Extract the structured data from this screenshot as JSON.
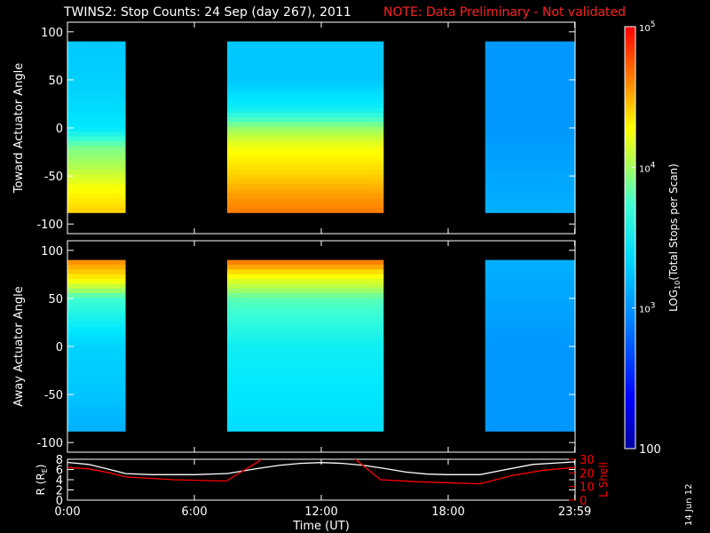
{
  "title": "TWINS2: Stop Counts: 24 Sep (day 267), 2011",
  "note": "NOTE: Data Preliminary - Not validated",
  "side_date": "14 Jun 12",
  "colors": {
    "background": "#000000",
    "axes": "#ffffff",
    "note": "#ff2020",
    "r_line": "#ffffff",
    "l_line": "#ff0000"
  },
  "chart_data": [
    {
      "type": "heatmap",
      "ylabel": "Toward Actuator Angle",
      "xlim": [
        0,
        24
      ],
      "ylim": [
        -110,
        110
      ],
      "x_ticks": [
        {
          "value": 0,
          "label": "0:00"
        },
        {
          "value": 6,
          "label": "6:00"
        },
        {
          "value": 12,
          "label": "12:00"
        },
        {
          "value": 18,
          "label": "18:00"
        },
        {
          "value": 23.983,
          "label": "23:59"
        }
      ],
      "y_ticks": [
        {
          "value": 100,
          "label": "100"
        },
        {
          "value": 50,
          "label": "50"
        },
        {
          "value": 0,
          "label": "0"
        },
        {
          "value": -50,
          "label": "-50"
        },
        {
          "value": -100,
          "label": "-100"
        }
      ],
      "angle_range": [
        -88,
        90
      ],
      "data_intervals": [
        {
          "start": 0.0,
          "end": 2.75,
          "levels": [
            {
              "y": 90,
              "v": 3.05
            },
            {
              "y": 40,
              "v": 3.1
            },
            {
              "y": 0,
              "v": 3.2
            },
            {
              "y": -20,
              "v": 3.5
            },
            {
              "y": -40,
              "v": 3.6
            },
            {
              "y": -60,
              "v": 3.75
            },
            {
              "y": -88,
              "v": 3.9
            }
          ]
        },
        {
          "start": 7.55,
          "end": 14.95,
          "levels": [
            {
              "y": 90,
              "v": 3.05
            },
            {
              "y": 50,
              "v": 3.05
            },
            {
              "y": 20,
              "v": 3.25
            },
            {
              "y": 0,
              "v": 3.55
            },
            {
              "y": -20,
              "v": 3.75
            },
            {
              "y": -50,
              "v": 3.9
            },
            {
              "y": -88,
              "v": 4.15
            }
          ]
        },
        {
          "start": 19.75,
          "end": 24.0,
          "levels": [
            {
              "y": 90,
              "v": 2.95
            },
            {
              "y": 0,
              "v": 2.95
            },
            {
              "y": -88,
              "v": 3.0
            }
          ]
        }
      ]
    },
    {
      "type": "heatmap",
      "ylabel": "Away Actuator Angle",
      "xlim": [
        0,
        24
      ],
      "ylim": [
        -110,
        110
      ],
      "x_ticks": [
        {
          "value": 0,
          "label": "0:00"
        },
        {
          "value": 6,
          "label": "6:00"
        },
        {
          "value": 12,
          "label": "12:00"
        },
        {
          "value": 18,
          "label": "18:00"
        },
        {
          "value": 23.983,
          "label": "23:59"
        }
      ],
      "y_ticks": [
        {
          "value": 100,
          "label": "100"
        },
        {
          "value": 50,
          "label": "50"
        },
        {
          "value": 0,
          "label": "0"
        },
        {
          "value": -50,
          "label": "-50"
        },
        {
          "value": -100,
          "label": "-100"
        }
      ],
      "angle_range": [
        -88,
        90
      ],
      "data_intervals": [
        {
          "start": 0.0,
          "end": 2.75,
          "levels": [
            {
              "y": 90,
              "v": 4.1
            },
            {
              "y": 70,
              "v": 3.8
            },
            {
              "y": 50,
              "v": 3.4
            },
            {
              "y": 0,
              "v": 3.1
            },
            {
              "y": -88,
              "v": 3.0
            }
          ]
        },
        {
          "start": 7.55,
          "end": 14.95,
          "levels": [
            {
              "y": 90,
              "v": 4.2
            },
            {
              "y": 75,
              "v": 3.8
            },
            {
              "y": 50,
              "v": 3.45
            },
            {
              "y": 0,
              "v": 3.25
            },
            {
              "y": -88,
              "v": 3.15
            }
          ]
        },
        {
          "start": 19.75,
          "end": 24.0,
          "levels": [
            {
              "y": 90,
              "v": 3.0
            },
            {
              "y": 0,
              "v": 2.95
            },
            {
              "y": -88,
              "v": 2.95
            }
          ]
        }
      ]
    },
    {
      "type": "line",
      "xlabel": "Time (UT)",
      "ylabel_left": "R (R",
      "ylabel_left_sub": "E",
      "ylabel_left_end": ")",
      "ylabel_right": "L Shell",
      "xlim": [
        0,
        24
      ],
      "ylim_left": [
        0,
        8
      ],
      "ylim_right": [
        0,
        30
      ],
      "x_ticks": [
        {
          "value": 0,
          "label": "0:00"
        },
        {
          "value": 6,
          "label": "6:00"
        },
        {
          "value": 12,
          "label": "12:00"
        },
        {
          "value": 18,
          "label": "18:00"
        },
        {
          "value": 23.983,
          "label": "23:59"
        }
      ],
      "y_ticks_left": [
        {
          "value": 8,
          "label": "8"
        },
        {
          "value": 6,
          "label": "6"
        },
        {
          "value": 4,
          "label": "4"
        },
        {
          "value": 2,
          "label": "2"
        },
        {
          "value": 0,
          "label": "0"
        }
      ],
      "y_ticks_right": [
        {
          "value": 30,
          "label": "30"
        },
        {
          "value": 20,
          "label": "20"
        },
        {
          "value": 10,
          "label": "10"
        },
        {
          "value": 0,
          "label": "0"
        }
      ],
      "series": [
        {
          "axis": "left",
          "x": [
            0,
            1,
            2,
            2.75,
            4,
            6,
            7.55,
            9,
            10,
            11,
            12,
            13,
            14,
            15,
            16,
            17,
            18,
            19.5,
            20.5,
            22,
            24
          ],
          "y": [
            7.4,
            7.0,
            6.0,
            5.2,
            5.0,
            5.0,
            5.2,
            6.2,
            6.8,
            7.2,
            7.35,
            7.2,
            6.8,
            6.2,
            5.5,
            5.1,
            5.0,
            5.0,
            5.8,
            7.0,
            7.5
          ]
        },
        {
          "axis": "right",
          "x": [
            0,
            1,
            2,
            2.75,
            5,
            7.5,
            9,
            9.5,
            13.3,
            14.8,
            16.5,
            19.5,
            21,
            22.5,
            24
          ],
          "y": [
            24,
            23,
            20,
            17,
            15,
            14,
            28,
            34,
            34,
            15,
            13.5,
            12,
            18,
            22,
            24
          ]
        }
      ]
    }
  ],
  "colorbar": {
    "label": "LOG",
    "label_sub": "10",
    "label_rest": "(Total Stops per Scan)",
    "range_log10": [
      2,
      5
    ],
    "ticks": [
      {
        "value": 5,
        "base": "10",
        "exp": "5"
      },
      {
        "value": 4,
        "base": "10",
        "exp": "4"
      },
      {
        "value": 3,
        "base": "10",
        "exp": "3"
      },
      {
        "value": 2,
        "base": "100",
        "exp": ""
      }
    ]
  }
}
